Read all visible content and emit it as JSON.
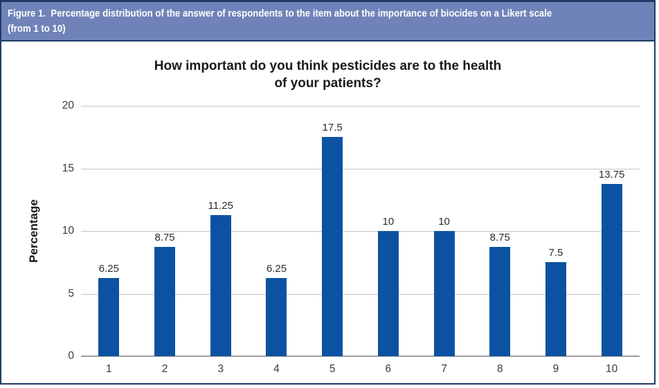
{
  "figure": {
    "caption_line1": "Figure 1.  Percentage distribution of the answer of respondents to the item about the importance of biocides on a Likert scale",
    "caption_line2": "(from 1 to 10)"
  },
  "chart_data": {
    "type": "bar",
    "title": "How important do you think pesticides are to the health of your patients?",
    "title_line1": "How important do you think pesticides are to the health",
    "title_line2": "of your patients?",
    "xlabel": "",
    "ylabel": "Percentage",
    "categories": [
      "1",
      "2",
      "3",
      "4",
      "5",
      "6",
      "7",
      "8",
      "9",
      "10"
    ],
    "values": [
      6.25,
      8.75,
      11.25,
      6.25,
      17.5,
      10,
      10,
      8.75,
      7.5,
      13.75
    ],
    "value_labels": [
      "6.25",
      "8.75",
      "11.25",
      "6.25",
      "17.5",
      "10",
      "10",
      "8.75",
      "7.5",
      "13.75"
    ],
    "ylim": [
      0,
      20
    ],
    "yticks": [
      0,
      5,
      10,
      15,
      20
    ],
    "grid": "horizontal",
    "legend_position": "none"
  },
  "colors": {
    "caption_bg": "#7083B8",
    "caption_text": "#FFFFFF",
    "figure_border": "#1F3C66",
    "bar": "#0D52A2",
    "gridline": "#C5C5C5",
    "axis_line": "#9E9E9E",
    "title_text": "#1A1A1A",
    "tick_text": "#3A3A3A"
  }
}
